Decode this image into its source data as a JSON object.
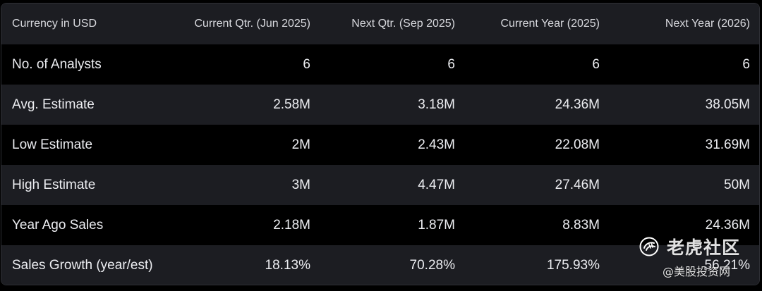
{
  "table": {
    "headers": [
      "Currency in USD",
      "Current Qtr. (Jun 2025)",
      "Next Qtr. (Sep 2025)",
      "Current Year (2025)",
      "Next Year (2026)"
    ],
    "rows": [
      {
        "label": "No. of Analysts",
        "values": [
          "6",
          "6",
          "6",
          "6"
        ]
      },
      {
        "label": "Avg. Estimate",
        "values": [
          "2.58M",
          "3.18M",
          "24.36M",
          "38.05M"
        ]
      },
      {
        "label": "Low Estimate",
        "values": [
          "2M",
          "2.43M",
          "22.08M",
          "31.69M"
        ]
      },
      {
        "label": "High Estimate",
        "values": [
          "3M",
          "4.47M",
          "27.46M",
          "50M"
        ]
      },
      {
        "label": "Year Ago Sales",
        "values": [
          "2.18M",
          "1.87M",
          "8.83M",
          "24.36M"
        ]
      },
      {
        "label": "Sales Growth (year/est)",
        "values": [
          "18.13%",
          "70.28%",
          "175.93%",
          "56.21%"
        ]
      }
    ]
  },
  "watermark": {
    "name": "老虎社区",
    "sub": "@美股投资网",
    "icon": "tiger-logo-icon"
  },
  "colors": {
    "background": "#000000",
    "row_alt": "#1c1d22",
    "text": "#ecedf1",
    "header_text": "#d8d9de",
    "border": "#2e2f35"
  }
}
